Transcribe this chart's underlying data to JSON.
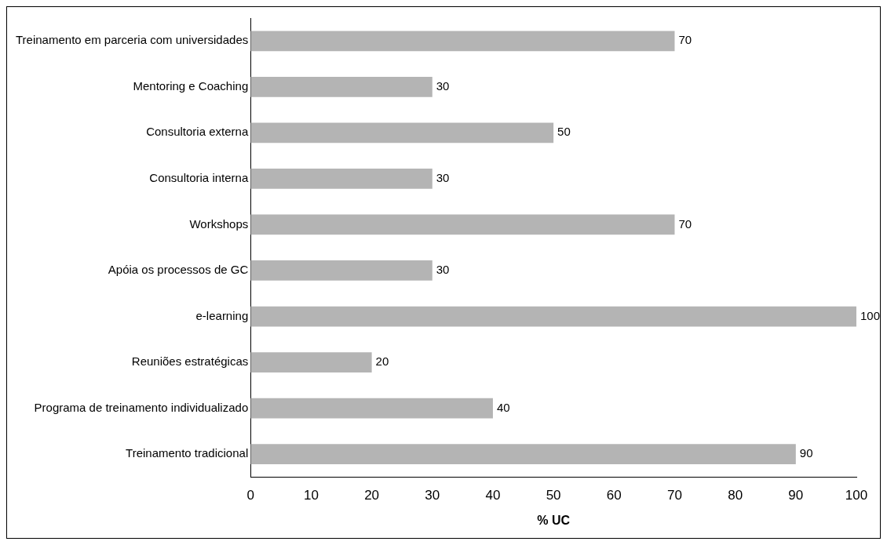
{
  "chart_data": {
    "type": "bar",
    "orientation": "horizontal",
    "xlabel": "% UC",
    "categories": [
      "Treinamento em parceria com universidades",
      "Mentoring e Coaching",
      "Consultoria externa",
      "Consultoria interna",
      "Workshops",
      "Apóia os processos de GC",
      "e-learning",
      "Reuniões estratégicas",
      "Programa de treinamento individualizado",
      "Treinamento tradicional"
    ],
    "values": [
      70,
      30,
      50,
      30,
      70,
      30,
      100,
      20,
      40,
      90
    ],
    "color": "#b4b4b4",
    "xlim": [
      0,
      100
    ],
    "xticks": [
      0,
      10,
      20,
      30,
      40,
      50,
      60,
      70,
      80,
      90,
      100
    ],
    "data_labels": true,
    "grid": false,
    "legend": false
  }
}
